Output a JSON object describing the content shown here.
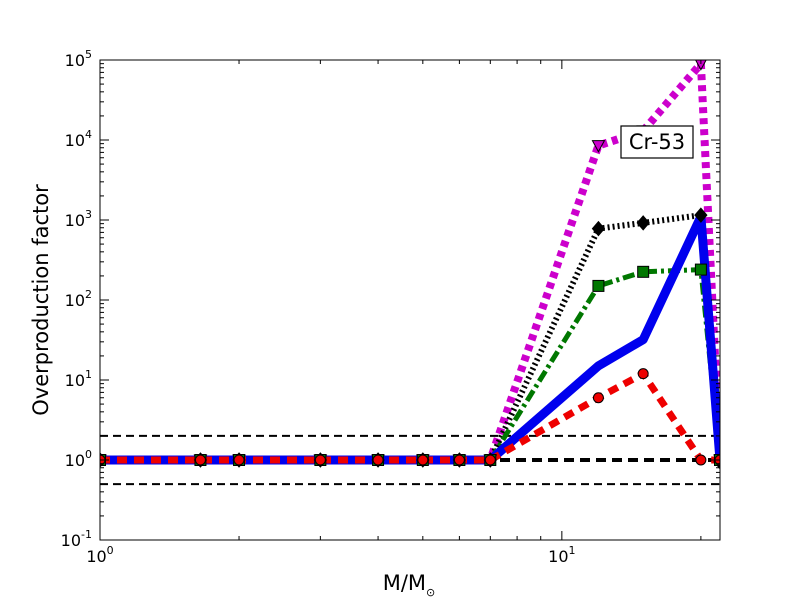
{
  "chart_data": {
    "type": "line",
    "title": "",
    "xlabel": "M/M",
    "xlabel_sub": "⊙",
    "ylabel": "Overproduction factor",
    "xscale": "log",
    "yscale": "log",
    "xlim": [
      1,
      22
    ],
    "ylim": [
      0.1,
      100000
    ],
    "x_ticks": [
      {
        "value": 1,
        "base": "10",
        "exp": "0"
      },
      {
        "value": 10,
        "base": "10",
        "exp": "1"
      }
    ],
    "y_ticks": [
      {
        "value": 0.1,
        "base": "10",
        "exp": "-1"
      },
      {
        "value": 1,
        "base": "10",
        "exp": "0"
      },
      {
        "value": 10,
        "base": "10",
        "exp": "1"
      },
      {
        "value": 100,
        "base": "10",
        "exp": "2"
      },
      {
        "value": 1000,
        "base": "10",
        "exp": "3"
      },
      {
        "value": 10000,
        "base": "10",
        "exp": "4"
      },
      {
        "value": 100000,
        "base": "10",
        "exp": "5"
      }
    ],
    "annotation": "Cr-53",
    "reference_lines": [
      {
        "y": 2,
        "color": "#000000",
        "style": "dashed"
      },
      {
        "y": 1,
        "color": "#000000",
        "style": "dashed-thick"
      },
      {
        "y": 0.5,
        "color": "#000000",
        "style": "dashed"
      }
    ],
    "series": [
      {
        "color": "#cc00cc",
        "style": "dotted",
        "marker": "triangle-down",
        "x": [
          1,
          1.65,
          2,
          3,
          4,
          5,
          6,
          7,
          12,
          15,
          20,
          22
        ],
        "y": [
          1,
          1,
          1,
          1,
          1,
          1,
          1,
          1,
          8500,
          13000,
          90000,
          1
        ]
      },
      {
        "color": "#000000",
        "style": "dotted-thin",
        "marker": "diamond",
        "x": [
          1,
          1.65,
          2,
          3,
          4,
          5,
          6,
          7,
          12,
          15,
          20,
          22
        ],
        "y": [
          1,
          1,
          1,
          1,
          1,
          1,
          1,
          1,
          780,
          920,
          1150,
          0.95
        ]
      },
      {
        "color": "#007700",
        "style": "dashdot",
        "marker": "square",
        "x": [
          1,
          1.65,
          2,
          3,
          4,
          5,
          6,
          7,
          12,
          15,
          20,
          22
        ],
        "y": [
          1,
          1,
          1,
          1,
          1,
          1,
          1,
          1,
          150,
          225,
          240,
          1
        ]
      },
      {
        "color": "#0000ee",
        "style": "solid",
        "marker": "none",
        "x": [
          1,
          1.65,
          2,
          3,
          4,
          5,
          6,
          7,
          12,
          15,
          20,
          22
        ],
        "y": [
          1,
          1,
          1,
          1,
          1,
          1,
          1,
          1,
          15,
          32,
          1100,
          1
        ]
      },
      {
        "color": "#ee0000",
        "style": "dashed",
        "marker": "circle",
        "x": [
          1,
          1.65,
          2,
          3,
          4,
          5,
          6,
          7,
          12,
          15,
          20,
          22
        ],
        "y": [
          1,
          1,
          1,
          1,
          1,
          1,
          1,
          1,
          6,
          12,
          1,
          1
        ]
      }
    ]
  }
}
